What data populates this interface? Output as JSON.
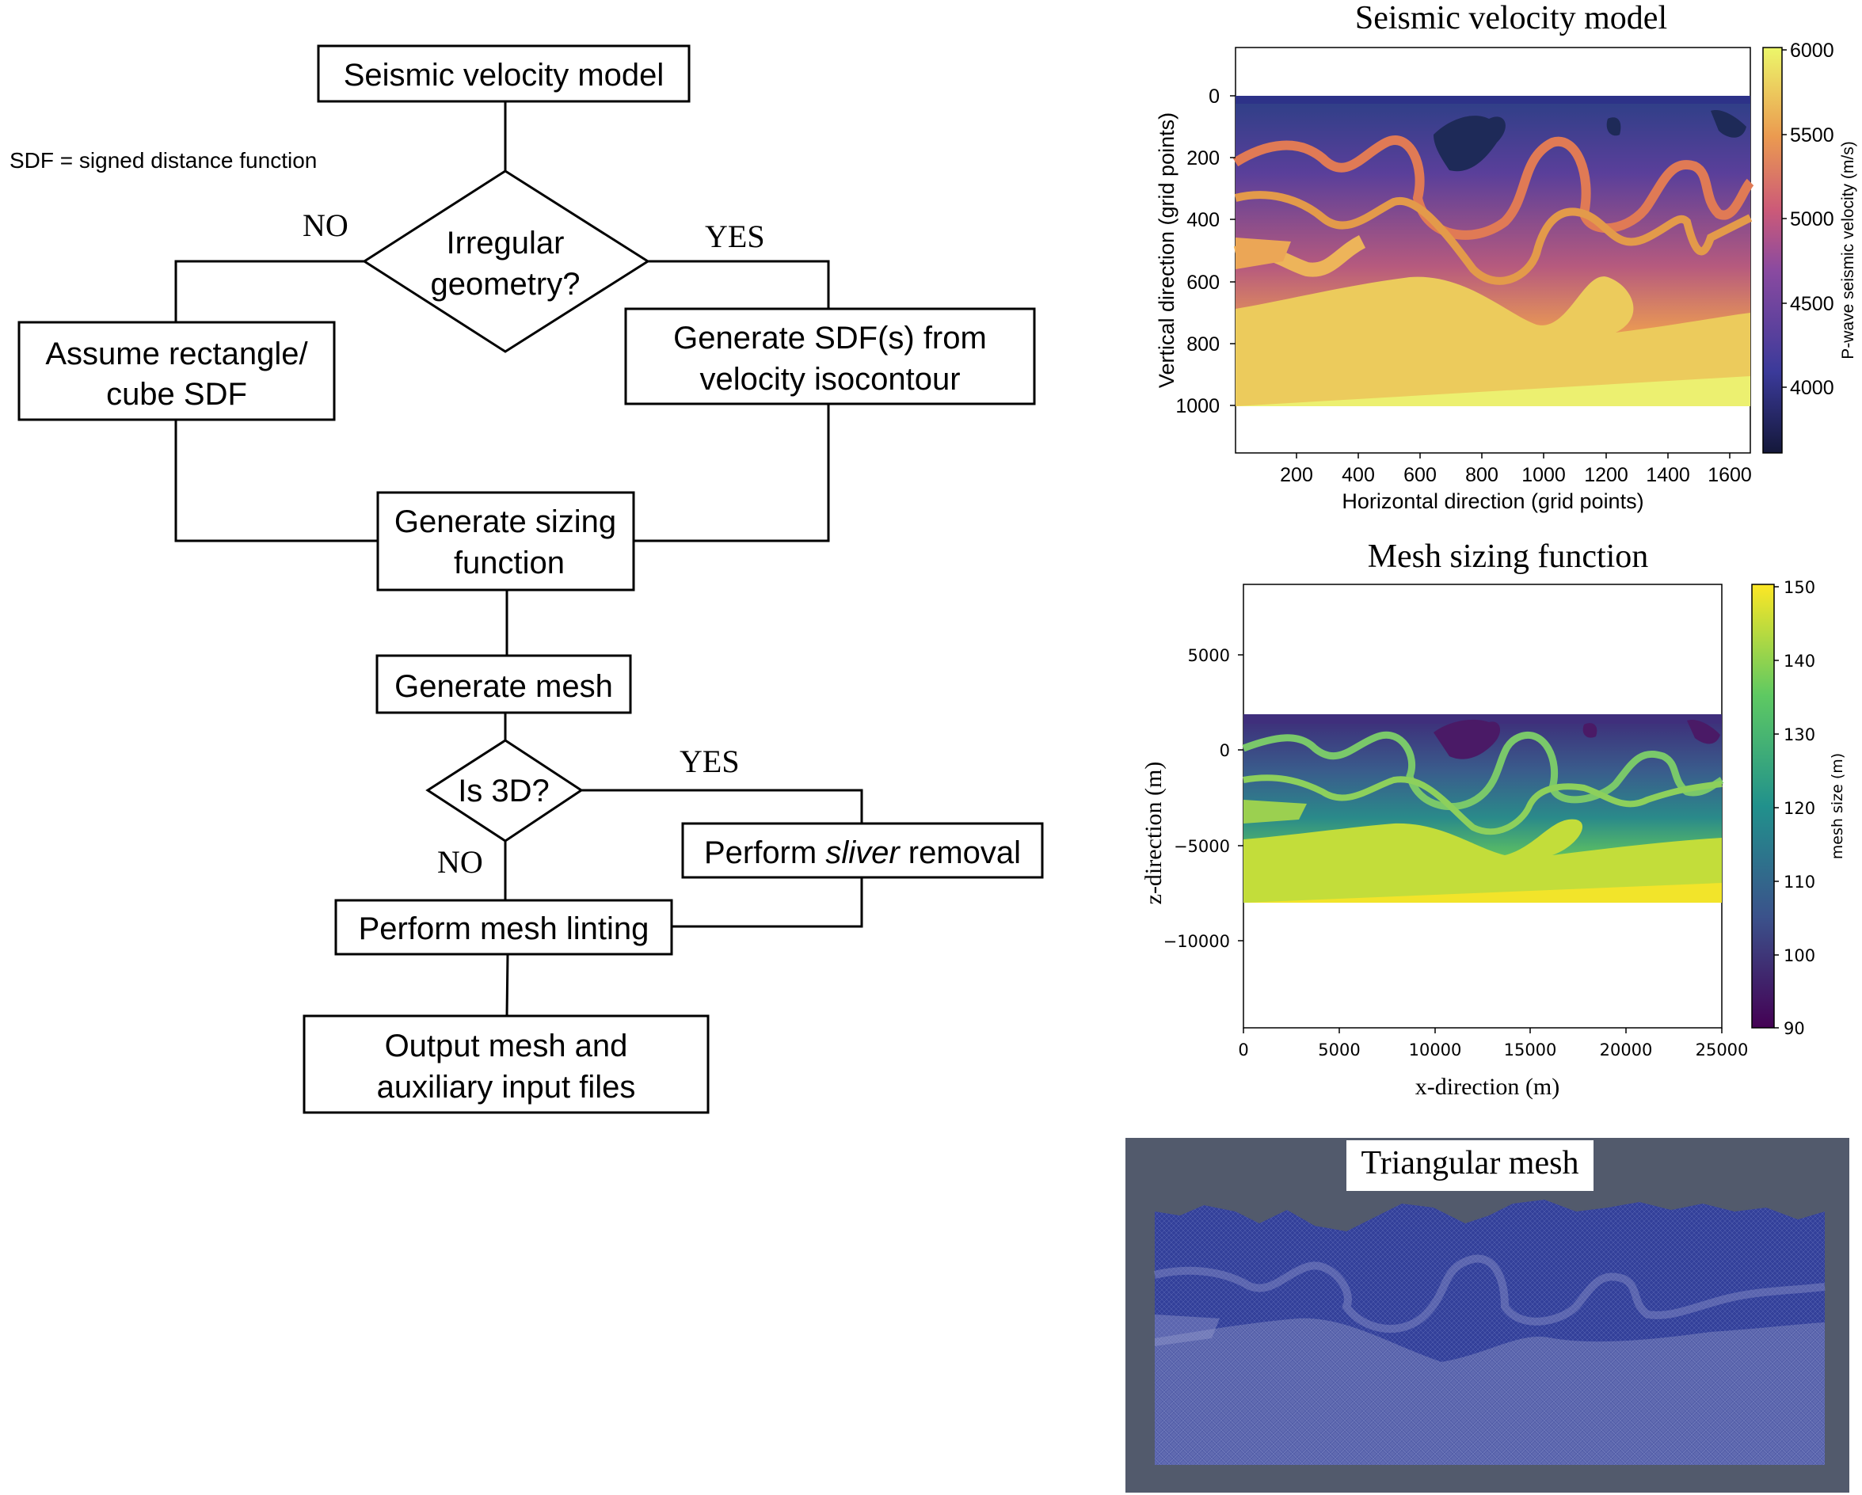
{
  "flowchart": {
    "note": "SDF = signed distance function",
    "start": "Seismic velocity model",
    "decision1": [
      "Irregular",
      "geometry?"
    ],
    "no_label": "NO",
    "yes_label": "YES",
    "assume": [
      "Assume rectangle/",
      "cube SDF"
    ],
    "generate_sdf": [
      "Generate SDF(s) from",
      "velocity isocontour"
    ],
    "sizing": [
      "Generate sizing",
      "function"
    ],
    "gen_mesh": "Generate mesh",
    "decision2": "Is 3D?",
    "sliver_prefix": "Perform ",
    "sliver_italic": "sliver",
    "sliver_suffix": " removal",
    "linting": "Perform mesh linting",
    "output": [
      "Output mesh and",
      "auxiliary input files"
    ]
  },
  "velocity_panel": {
    "title": "Seismic velocity model",
    "xlabel": "Horizontal direction (grid points)",
    "ylabel": "Vertical direction (grid points)",
    "colorbar_label": "P-wave seismic velocity (m/s)",
    "xticks": [
      "200",
      "400",
      "600",
      "800",
      "1000",
      "1200",
      "1400",
      "1600"
    ],
    "yticks": [
      "0",
      "200",
      "400",
      "600",
      "800",
      "1000"
    ],
    "cbticks": [
      "6000",
      "5500",
      "5000",
      "4500",
      "4000"
    ],
    "colors": {
      "low": "#1f2a55",
      "mid": "#b85a8a",
      "high": "#ecf56a"
    }
  },
  "sizing_panel": {
    "title": "Mesh sizing function",
    "xlabel": "x-direction (m)",
    "ylabel": "z-direction (m)",
    "colorbar_label": "mesh size (m)",
    "xticks": [
      "0",
      "5000",
      "10000",
      "15000",
      "20000",
      "25000"
    ],
    "yticks": [
      "5000",
      "0",
      "−5000",
      "−10000"
    ],
    "cbticks": [
      "150",
      "140",
      "130",
      "120",
      "110",
      "100",
      "90"
    ],
    "colors": {
      "low": "#440154",
      "mid": "#21918c",
      "high": "#fde725"
    }
  },
  "mesh_panel": {
    "title": "Triangular mesh",
    "colors": {
      "background": "#525a6c",
      "mesh": "#2f3a8f"
    }
  }
}
